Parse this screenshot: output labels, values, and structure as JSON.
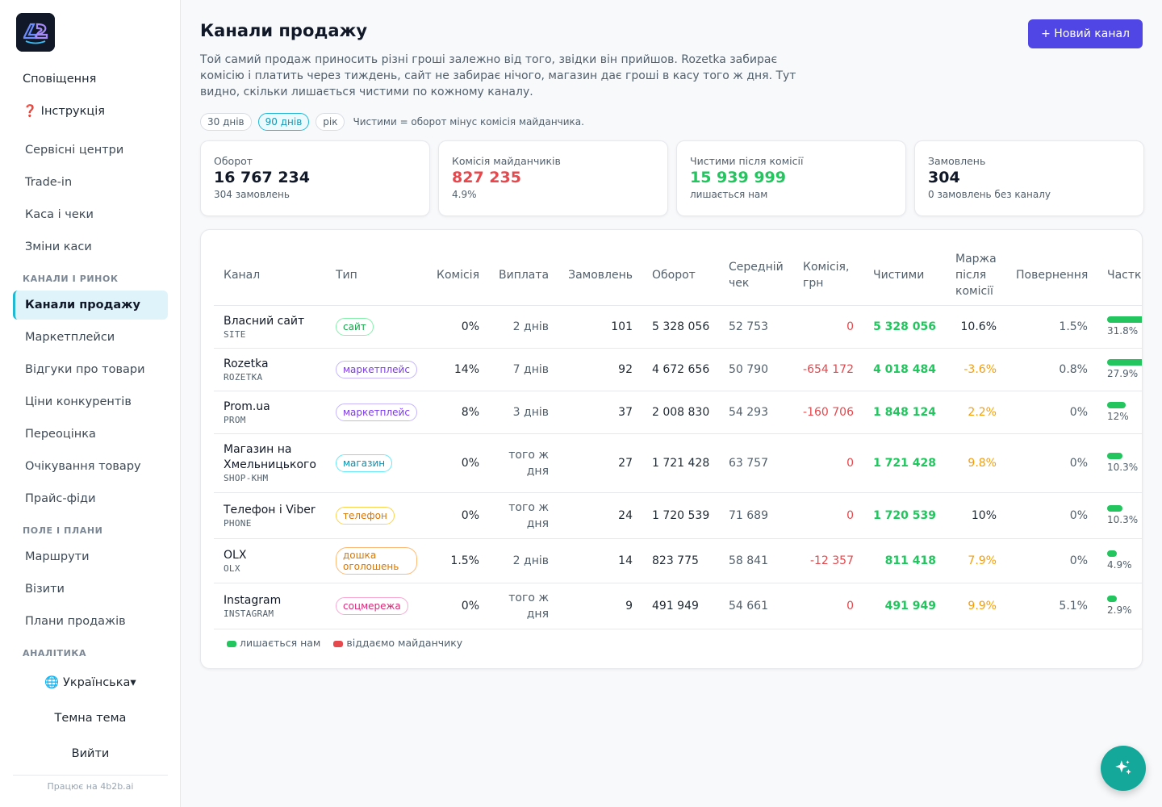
{
  "sidebar": {
    "top_links": [
      "Сповіщення",
      "❓ Інструкція"
    ],
    "items_a": [
      "Сервісні центри",
      "Trade-in",
      "Каса і чеки",
      "Зміни каси"
    ],
    "section_channels": "Канали і ринок",
    "items_b": [
      "Канали продажу",
      "Маркетплейси",
      "Відгуки про товари",
      "Ціни конкурентів",
      "Переоцінка",
      "Очікування товару",
      "Прайс-фіди"
    ],
    "section_field": "Поле і плани",
    "items_c": [
      "Маршрути",
      "Візити",
      "Плани продажів"
    ],
    "section_analytics": "Аналітика",
    "language": "🌐 Українська▾",
    "theme": "Темна тема",
    "logout": "Вийти",
    "powered": "Працює на 4b2b.ai"
  },
  "header": {
    "title": "Канали продажу",
    "new_button": "+ Новий канал",
    "description": "Той самий продаж приносить різні гроші залежно від того, звідки він прийшов. Rozetka забирає комісію і платить через тиждень, сайт не забирає нічого, магазин дає гроші в касу того ж дня. Тут видно, скільки лишається чистими по кожному каналу."
  },
  "filters": {
    "periods": [
      "30 днів",
      "90 днів",
      "рік"
    ],
    "active": "90 днів",
    "note": "Чистими = оборот мінус комісія майданчика."
  },
  "stats": [
    {
      "label": "Оборот",
      "value": "16 767 234",
      "sub": "304 замовлень"
    },
    {
      "label": "Комісія майданчиків",
      "value": "827 235",
      "sub": "4.9%"
    },
    {
      "label": "Чистими після комісії",
      "value": "15 939 999",
      "sub": "лишається нам"
    },
    {
      "label": "Замовлень",
      "value": "304",
      "sub": "0 замовлень без каналу"
    }
  ],
  "table": {
    "columns": [
      "Канал",
      "Тип",
      "Комісія",
      "Виплата",
      "Замовлень",
      "Оборот",
      "Середній чек",
      "Комісія, грн",
      "Чистими",
      "Маржа після комісії",
      "Повернення",
      "Частка"
    ],
    "rows": [
      {
        "name": "Власний сайт",
        "code": "SITE",
        "type": "сайт",
        "commission": "0%",
        "payout": "2 днів",
        "orders": "101",
        "turnover": "5 328 056",
        "avg": "52 753",
        "commission_uah": "0",
        "net": "5 328 056",
        "margin": "10.6%",
        "returns": "1.5%",
        "share": "31.8%",
        "share_value": 31.8
      },
      {
        "name": "Rozetka",
        "code": "ROZETKA",
        "type": "маркетплейс",
        "commission": "14%",
        "payout": "7 днів",
        "orders": "92",
        "turnover": "4 672 656",
        "avg": "50 790",
        "commission_uah": "-654 172",
        "net": "4 018 484",
        "margin": "-3.6%",
        "returns": "0.8%",
        "share": "27.9%",
        "share_value": 27.9
      },
      {
        "name": "Prom.ua",
        "code": "PROM",
        "type": "маркетплейс",
        "commission": "8%",
        "payout": "3 днів",
        "orders": "37",
        "turnover": "2 008 830",
        "avg": "54 293",
        "commission_uah": "-160 706",
        "net": "1 848 124",
        "margin": "2.2%",
        "returns": "0%",
        "share": "12%",
        "share_value": 12
      },
      {
        "name": "Магазин на Хмельницького",
        "code": "SHOP-KHM",
        "type": "магазин",
        "commission": "0%",
        "payout": "того ж дня",
        "orders": "27",
        "turnover": "1 721 428",
        "avg": "63 757",
        "commission_uah": "0",
        "net": "1 721 428",
        "margin": "9.8%",
        "returns": "0%",
        "share": "10.3%",
        "share_value": 10.3
      },
      {
        "name": "Телефон і Viber",
        "code": "PHONE",
        "type": "телефон",
        "commission": "0%",
        "payout": "того ж дня",
        "orders": "24",
        "turnover": "1 720 539",
        "avg": "71 689",
        "commission_uah": "0",
        "net": "1 720 539",
        "margin": "10%",
        "returns": "0%",
        "share": "10.3%",
        "share_value": 10.3
      },
      {
        "name": "OLX",
        "code": "OLX",
        "type": "дошка оголошень",
        "commission": "1.5%",
        "payout": "2 днів",
        "orders": "14",
        "turnover": "823 775",
        "avg": "58 841",
        "commission_uah": "-12 357",
        "net": "811 418",
        "margin": "7.9%",
        "returns": "0%",
        "share": "4.9%",
        "share_value": 4.9
      },
      {
        "name": "Instagram",
        "code": "INSTAGRAM",
        "type": "соцмережа",
        "commission": "0%",
        "payout": "того ж дня",
        "orders": "9",
        "turnover": "491 949",
        "avg": "54 661",
        "commission_uah": "0",
        "net": "491 949",
        "margin": "9.9%",
        "returns": "5.1%",
        "share": "2.9%",
        "share_value": 2.9
      }
    ]
  },
  "legend": {
    "kept": "лишається нам",
    "given": "віддаємо майданчику"
  },
  "colors": {
    "accent": "#4f46e5",
    "cyan": "#22b8d4",
    "green": "#22c55e",
    "red": "#e5484d",
    "orange": "#f59e0b",
    "fab": "#14a89a"
  },
  "icons": {
    "fab": "sparkles-icon"
  }
}
